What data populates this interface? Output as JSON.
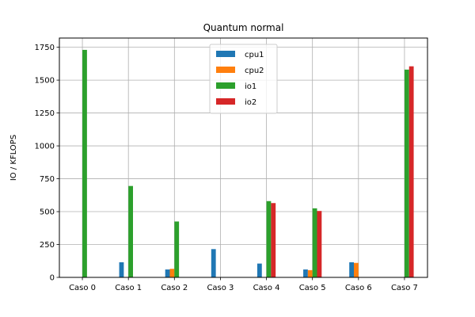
{
  "chart_data": {
    "type": "bar",
    "title": "Quantum normal",
    "xlabel": "",
    "ylabel": "IO / KFLOPS",
    "categories": [
      "Caso 0",
      "Caso 1",
      "Caso 2",
      "Caso 3",
      "Caso 4",
      "Caso 5",
      "Caso 6",
      "Caso 7"
    ],
    "ylim": [
      0,
      1820
    ],
    "yticks": [
      0,
      250,
      500,
      750,
      1000,
      1250,
      1500,
      1750
    ],
    "grid": true,
    "legend_position": "top-center",
    "series": [
      {
        "name": "cpu1",
        "color": "#1f77b4",
        "values": [
          0,
          115,
          60,
          215,
          105,
          60,
          115,
          0
        ]
      },
      {
        "name": "cpu2",
        "color": "#ff7f0e",
        "values": [
          0,
          0,
          65,
          0,
          0,
          55,
          110,
          0
        ]
      },
      {
        "name": "io1",
        "color": "#2ca02c",
        "values": [
          1730,
          695,
          425,
          0,
          580,
          525,
          0,
          1580
        ]
      },
      {
        "name": "io2",
        "color": "#d62728",
        "values": [
          0,
          0,
          0,
          0,
          565,
          505,
          0,
          1605
        ]
      }
    ]
  }
}
